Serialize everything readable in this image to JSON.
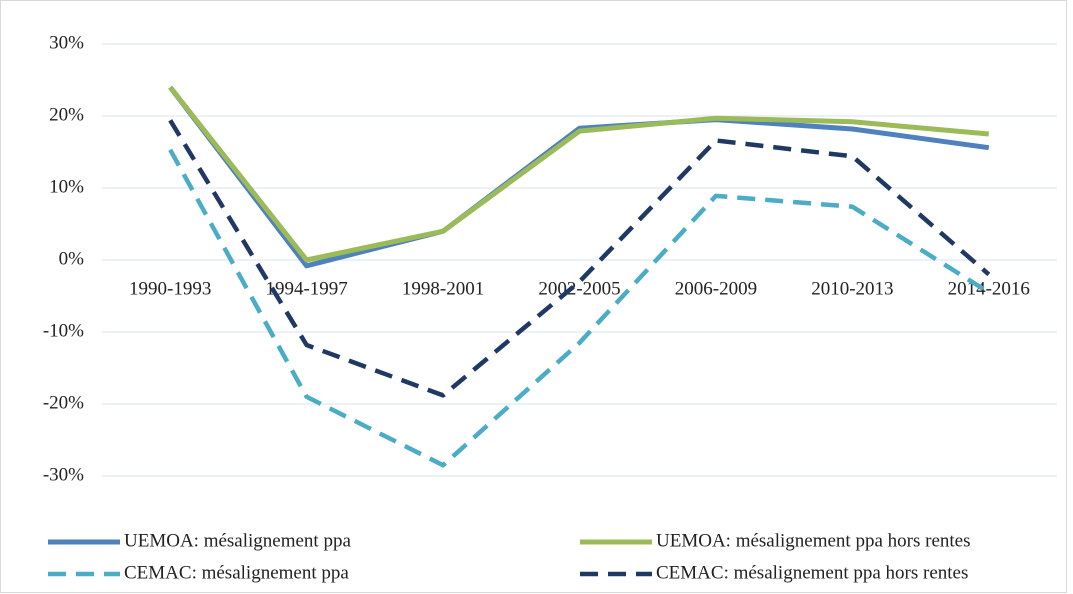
{
  "chart_data": {
    "type": "line",
    "categories": [
      "1990-1993",
      "1994-1997",
      "1998-2001",
      "2002-2005",
      "2006-2009",
      "2010-2013",
      "2014-2016"
    ],
    "series": [
      {
        "name": "UEMOA: mésalignement ppa",
        "color": "#4f81bd",
        "dashed": false,
        "values": [
          24,
          -0.8,
          4,
          18.3,
          19.5,
          18.2,
          15.6
        ]
      },
      {
        "name": "UEMOA: mésalignement ppa hors rentes",
        "color": "#9bbb59",
        "dashed": false,
        "values": [
          24,
          0,
          4,
          17.9,
          19.7,
          19.2,
          17.5
        ]
      },
      {
        "name": "CEMAC: mésalignement ppa",
        "color": "#4bacc6",
        "dashed": true,
        "values": [
          15.3,
          -19,
          -28.5,
          -11.5,
          8.9,
          7.4,
          -4.5
        ]
      },
      {
        "name": "CEMAC: mésalignement ppa hors rentes",
        "color": "#1f3864",
        "dashed": true,
        "values": [
          19.4,
          -11.8,
          -18.8,
          -3,
          16.6,
          14.4,
          -2
        ]
      }
    ],
    "ylim": [
      -30,
      30
    ],
    "yticks": [
      {
        "value": 30,
        "label": "30%"
      },
      {
        "value": 20,
        "label": "20%"
      },
      {
        "value": 10,
        "label": "10%"
      },
      {
        "value": 0,
        "label": "0%"
      },
      {
        "value": -10,
        "label": "-10%"
      },
      {
        "value": -20,
        "label": "-20%"
      },
      {
        "value": -30,
        "label": "-30%"
      }
    ],
    "grid": true,
    "legend": "bottom"
  }
}
